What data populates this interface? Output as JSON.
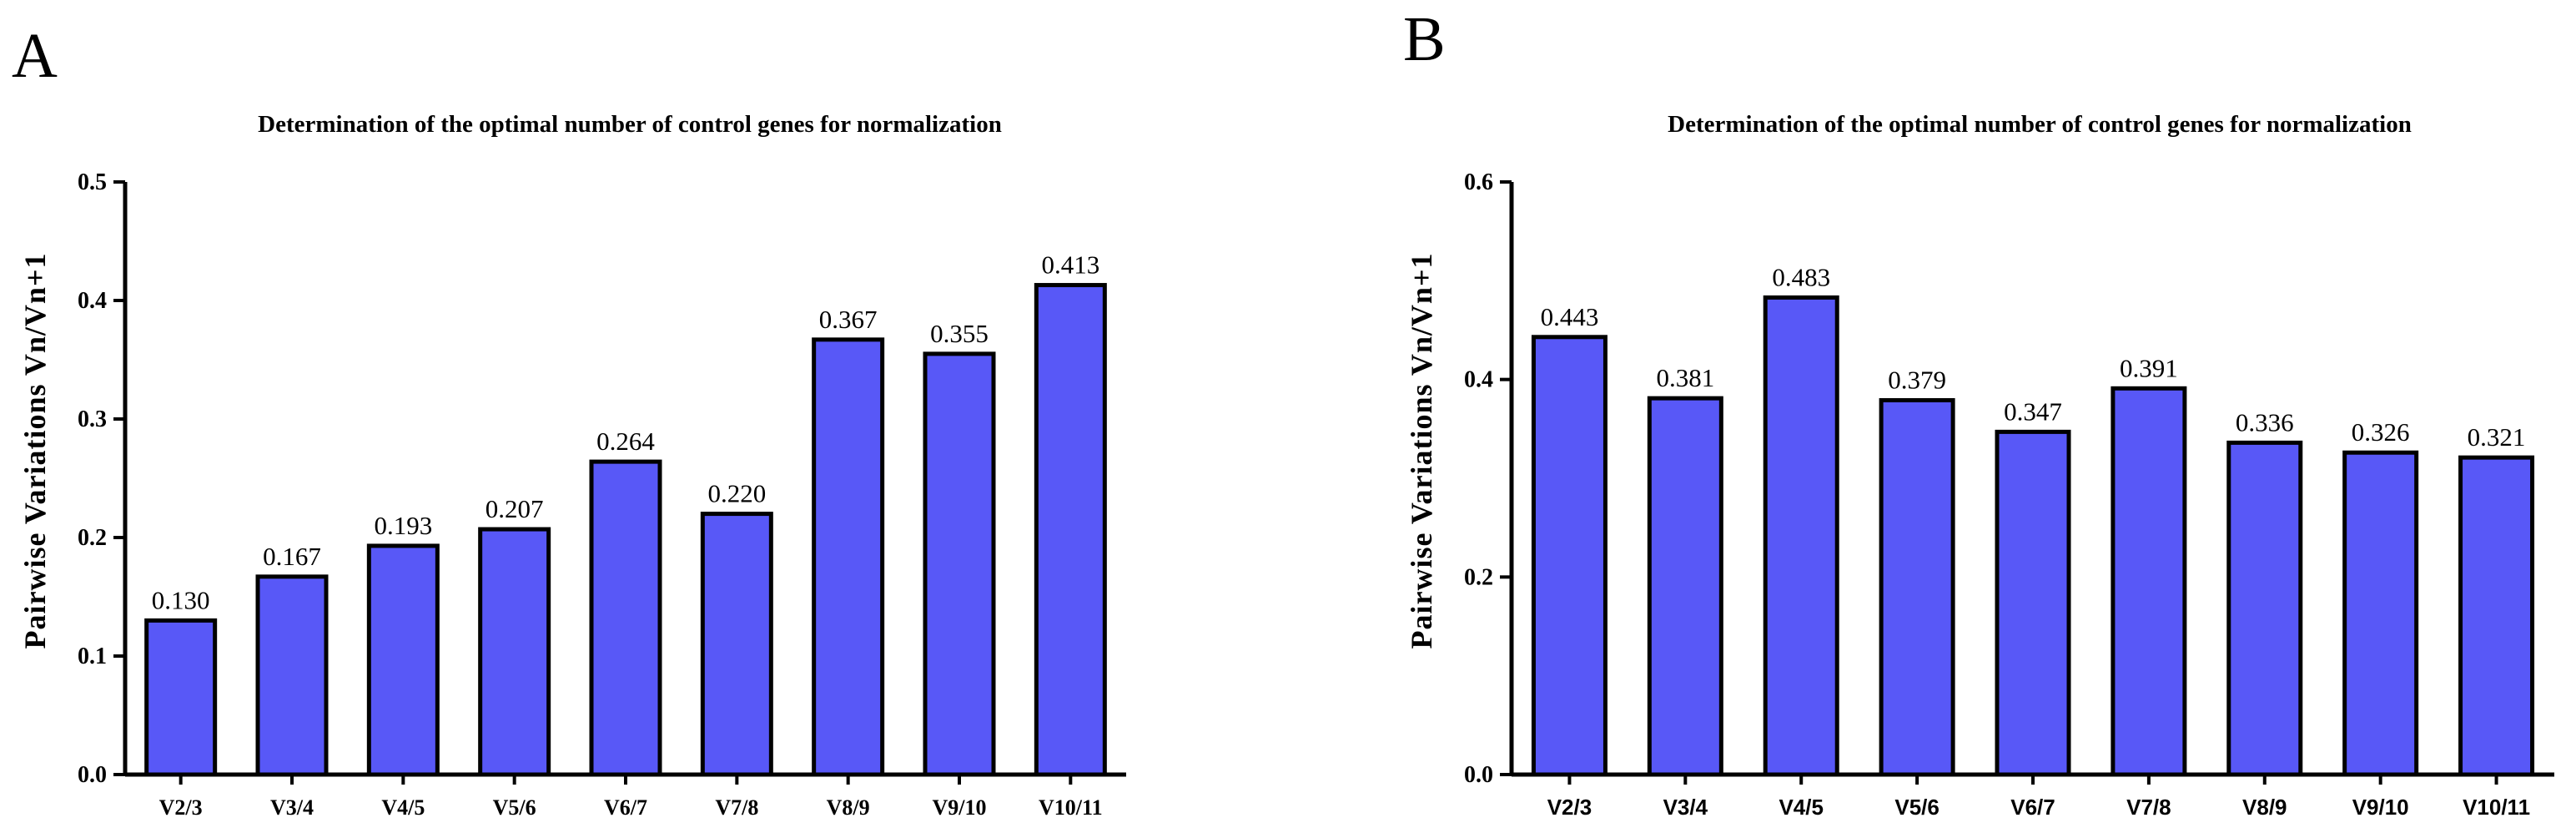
{
  "figure": {
    "panel_labels": [
      "A",
      "B"
    ]
  },
  "colors": {
    "bar_fill": "#5858f7",
    "bar_stroke": "#000000",
    "axis": "#000000"
  },
  "chart_data": [
    {
      "type": "bar",
      "panel": "A",
      "title": "Determination of the optimal number of control genes for normalization",
      "xlabel": "",
      "ylabel": "Pairwise Variations Vn/Vn+1",
      "ylim": [
        0,
        0.5
      ],
      "yticks": [
        0.0,
        0.1,
        0.2,
        0.3,
        0.4,
        0.5
      ],
      "ytick_labels": [
        "0.0",
        "0.1",
        "0.2",
        "0.3",
        "0.4",
        "0.5"
      ],
      "categories": [
        "V2/3",
        "V3/4",
        "V4/5",
        "V5/6",
        "V6/7",
        "V7/8",
        "V8/9",
        "V9/10",
        "V10/11"
      ],
      "values": [
        0.13,
        0.167,
        0.193,
        0.207,
        0.264,
        0.22,
        0.367,
        0.355,
        0.413
      ],
      "value_labels": [
        "0.130",
        "0.167",
        "0.193",
        "0.207",
        "0.264",
        "0.220",
        "0.367",
        "0.355",
        "0.413"
      ],
      "grid": false,
      "legend": "none"
    },
    {
      "type": "bar",
      "panel": "B",
      "title": "Determination of the optimal number of control genes for normalization",
      "xlabel": "",
      "ylabel": "Pairwise Variations Vn/Vn+1",
      "ylim": [
        0,
        0.6
      ],
      "yticks": [
        0.0,
        0.2,
        0.4,
        0.6
      ],
      "ytick_labels": [
        "0.0",
        "0.2",
        "0.4",
        "0.6"
      ],
      "categories": [
        "V2/3",
        "V3/4",
        "V4/5",
        "V5/6",
        "V6/7",
        "V7/8",
        "V8/9",
        "V9/10",
        "V10/11"
      ],
      "values": [
        0.443,
        0.381,
        0.483,
        0.379,
        0.347,
        0.391,
        0.336,
        0.326,
        0.321
      ],
      "value_labels": [
        "0.443",
        "0.381",
        "0.483",
        "0.379",
        "0.347",
        "0.391",
        "0.336",
        "0.326",
        "0.321"
      ],
      "grid": false,
      "legend": "none"
    }
  ]
}
